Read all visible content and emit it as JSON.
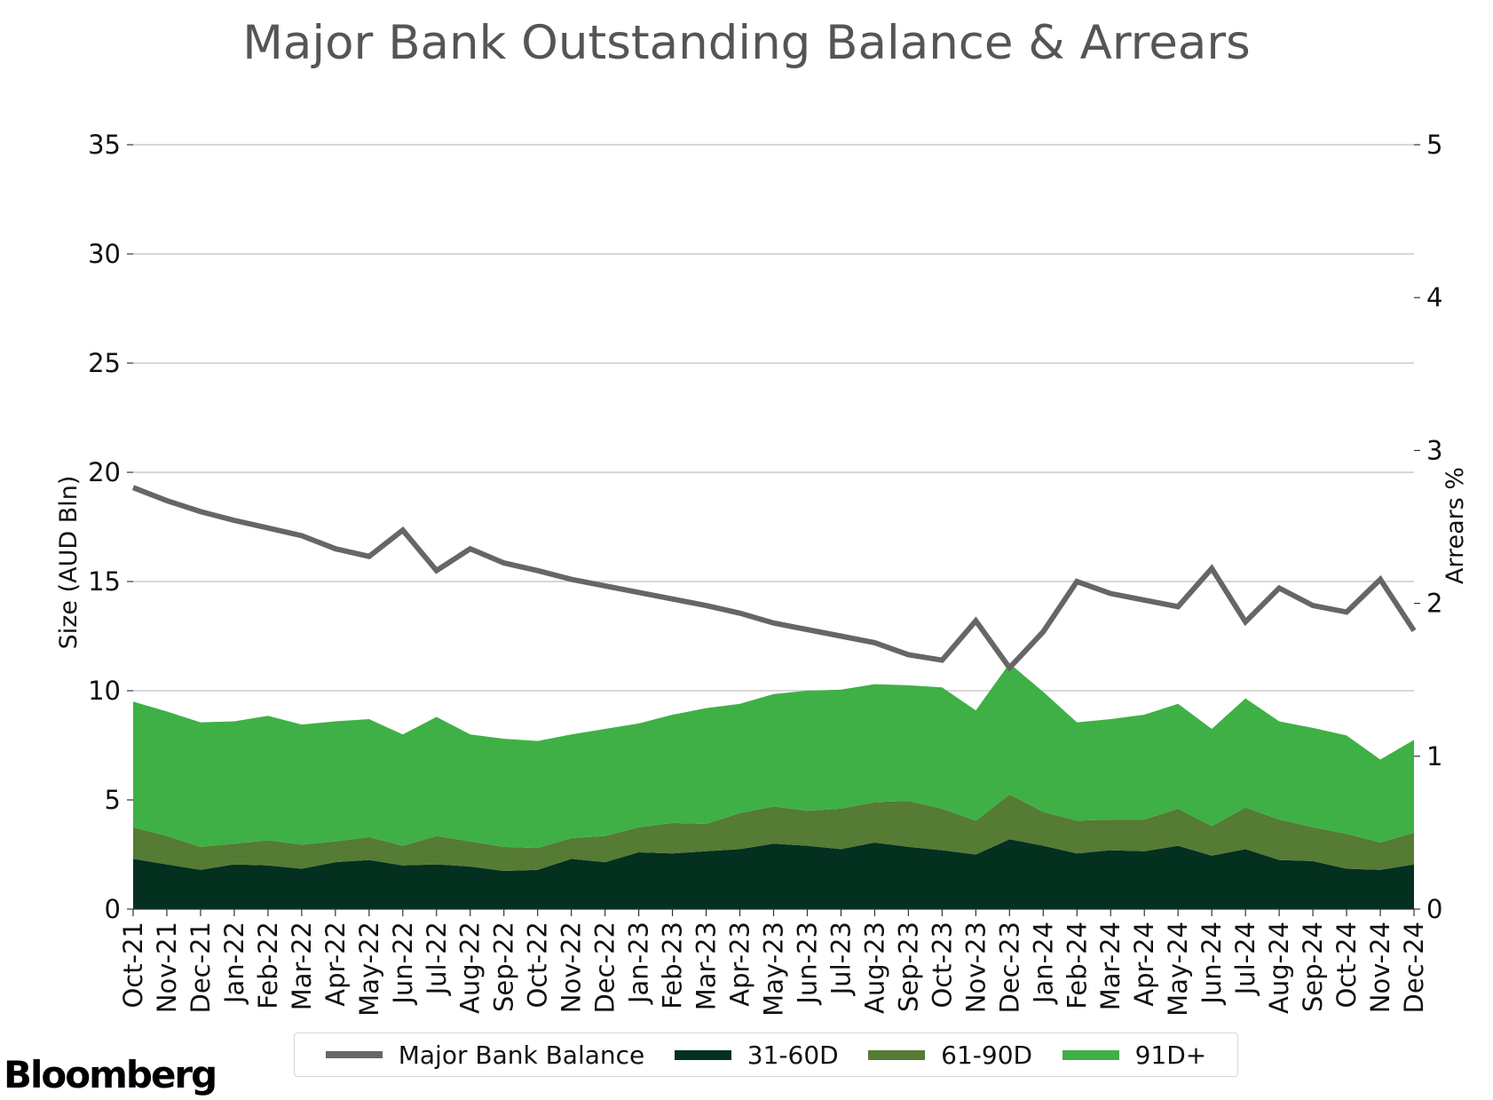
{
  "chart_data": {
    "type": "area",
    "title": "Major Bank Outstanding Balance & Arrears",
    "ylabel_left": "Size (AUD Bln)",
    "ylabel_right": "Arrears %",
    "ylim_left": [
      0,
      35
    ],
    "ylim_right": [
      0,
      5
    ],
    "yticks_left": [
      0,
      5,
      10,
      15,
      20,
      25,
      30,
      35
    ],
    "yticks_right": [
      0,
      1,
      2,
      3,
      4,
      5
    ],
    "grid": true,
    "legend_position": "bottom",
    "categories": [
      "Oct-21",
      "Nov-21",
      "Dec-21",
      "Jan-22",
      "Feb-22",
      "Mar-22",
      "Apr-22",
      "May-22",
      "Jun-22",
      "Jul-22",
      "Aug-22",
      "Sep-22",
      "Oct-22",
      "Nov-22",
      "Dec-22",
      "Jan-23",
      "Feb-23",
      "Mar-23",
      "Apr-23",
      "May-23",
      "Jun-23",
      "Jul-23",
      "Aug-23",
      "Sep-23",
      "Oct-23",
      "Nov-23",
      "Dec-23",
      "Jan-24",
      "Feb-24",
      "Mar-24",
      "Apr-24",
      "May-24",
      "Jun-24",
      "Jul-24",
      "Aug-24",
      "Sep-24",
      "Oct-24",
      "Nov-24",
      "Dec-24"
    ],
    "series": [
      {
        "name": "31-60D",
        "type": "area",
        "axis": "left",
        "color": "#03301f",
        "values": [
          2.3,
          2.05,
          1.8,
          2.05,
          2.0,
          1.85,
          2.15,
          2.25,
          2.0,
          2.05,
          1.95,
          1.75,
          1.8,
          2.3,
          2.15,
          2.6,
          2.55,
          2.65,
          2.75,
          3.0,
          2.9,
          2.75,
          3.05,
          2.85,
          2.7,
          2.5,
          3.2,
          2.9,
          2.55,
          2.7,
          2.65,
          2.9,
          2.45,
          2.75,
          2.25,
          2.2,
          1.85,
          1.8,
          2.05
        ]
      },
      {
        "name": "61-90D",
        "type": "area",
        "axis": "left",
        "color": "#557b34",
        "values": [
          1.45,
          1.3,
          1.05,
          0.95,
          1.15,
          1.1,
          0.95,
          1.05,
          0.9,
          1.3,
          1.15,
          1.1,
          1.0,
          0.95,
          1.2,
          1.15,
          1.4,
          1.25,
          1.65,
          1.7,
          1.6,
          1.85,
          1.85,
          2.1,
          1.9,
          1.55,
          2.05,
          1.55,
          1.5,
          1.4,
          1.45,
          1.7,
          1.35,
          1.9,
          1.85,
          1.55,
          1.6,
          1.25,
          1.45
        ]
      },
      {
        "name": "91D+",
        "type": "area",
        "axis": "left",
        "color": "#3fb045",
        "values": [
          5.75,
          5.7,
          5.7,
          5.6,
          5.7,
          5.5,
          5.5,
          5.4,
          5.1,
          5.45,
          4.9,
          4.95,
          4.9,
          4.75,
          4.9,
          4.75,
          4.95,
          5.3,
          5.0,
          5.15,
          5.5,
          5.45,
          5.4,
          5.3,
          5.55,
          5.05,
          6.0,
          5.5,
          4.5,
          4.6,
          4.8,
          4.8,
          4.45,
          5.0,
          4.5,
          4.55,
          4.5,
          3.8,
          4.25
        ]
      },
      {
        "name": "Major Bank Balance",
        "type": "line",
        "axis": "left",
        "color": "#666666",
        "values": [
          19.3,
          18.7,
          18.2,
          17.8,
          17.45,
          17.1,
          16.5,
          16.15,
          17.35,
          15.5,
          16.5,
          15.85,
          15.5,
          15.1,
          14.8,
          14.5,
          14.2,
          13.9,
          13.55,
          13.1,
          12.8,
          12.5,
          12.2,
          11.65,
          11.4,
          13.2,
          11.05,
          12.7,
          15.0,
          14.45,
          14.15,
          13.85,
          15.6,
          13.15,
          14.7,
          13.9,
          13.6,
          15.1,
          12.75
        ]
      }
    ]
  },
  "legend": {
    "items": [
      {
        "label": "Major Bank Balance",
        "color": "#666666"
      },
      {
        "label": "31-60D",
        "color": "#03301f"
      },
      {
        "label": "61-90D",
        "color": "#557b34"
      },
      {
        "label": "91D+",
        "color": "#3fb045"
      }
    ]
  },
  "branding": {
    "logo_text": "Bloomberg"
  }
}
